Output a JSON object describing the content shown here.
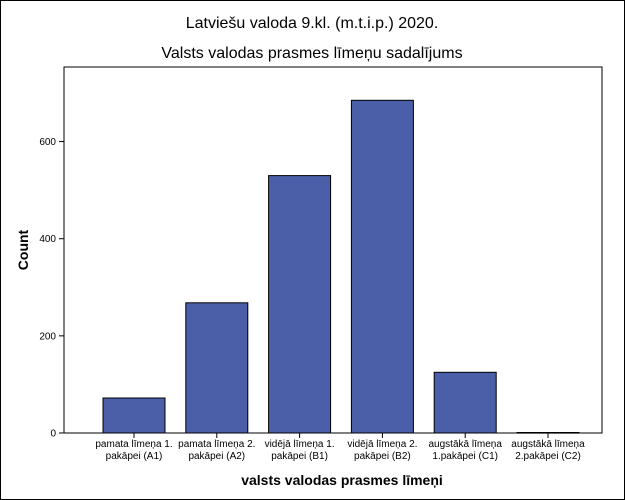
{
  "chart_data": {
    "type": "bar",
    "title": "Latviešu valoda 9.kl. (m.t.i.p.) 2020.",
    "subtitle": "Valsts valodas prasmes līmeņu sadalījums",
    "xlabel": "valsts valodas prasmes līmeņi",
    "ylabel": "Count",
    "categories": [
      [
        "pamata līmeņa 1.",
        "pakāpei (A1)"
      ],
      [
        "pamata līmeņa 2.",
        "pakāpei (A2)"
      ],
      [
        "vidējā līmeņa 1.",
        "pakāpei (B1)"
      ],
      [
        "vidējā līmeņa 2.",
        "pakāpei (B2)"
      ],
      [
        "augstākā līmeņa",
        "1.pakāpei (C1)"
      ],
      [
        "augstākā līmeņa",
        "2.pakāpei (C2)"
      ]
    ],
    "values": [
      72,
      268,
      530,
      685,
      125,
      1
    ],
    "ylim": [
      0,
      700
    ],
    "yticks": [
      0,
      200,
      400,
      600
    ],
    "grid": false,
    "bar_color": "#4a5fa8"
  }
}
